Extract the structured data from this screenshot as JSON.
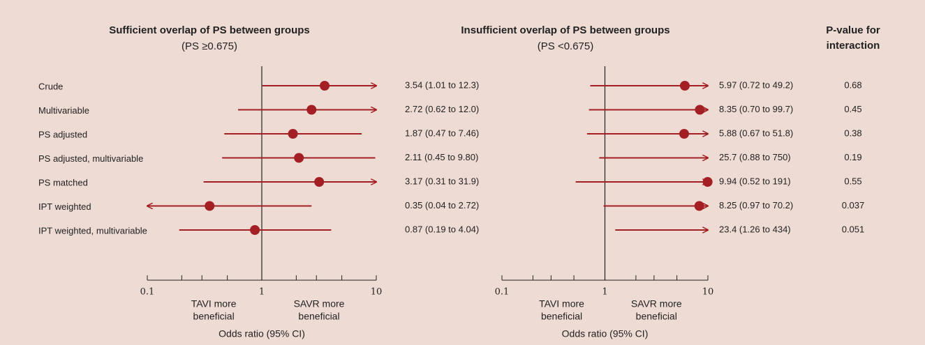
{
  "chart_data": [
    {
      "type": "forest",
      "title": "Sufficient overlap of PS between groups",
      "subtitle": "(PS ≥0.675)",
      "categories": [
        "Crude",
        "Multivariable",
        "PS adjusted",
        "PS adjusted, multivariable",
        "PS matched",
        "IPT weighted",
        "IPT weighted, multivariable"
      ],
      "values": [
        3.54,
        2.72,
        1.87,
        2.11,
        3.17,
        0.35,
        0.87
      ],
      "lower": [
        1.01,
        0.62,
        0.47,
        0.45,
        0.31,
        0.04,
        0.19
      ],
      "upper": [
        12.3,
        12.0,
        7.46,
        9.8,
        31.9,
        2.72,
        4.04
      ],
      "value_labels": [
        "3.54 (1.01 to 12.3)",
        "2.72 (0.62 to 12.0)",
        "1.87 (0.47 to 7.46)",
        "2.11 (0.45 to 9.80)",
        "3.17 (0.31 to 31.9)",
        "0.35 (0.04 to 2.72)",
        "0.87 (0.19 to 4.04)"
      ],
      "xlim": [
        0.1,
        10
      ],
      "xticks": [
        0.1,
        1,
        10
      ],
      "minor_ticks": [
        0.2,
        0.3,
        0.5,
        2,
        3,
        5
      ],
      "log_x": true,
      "xlabel": "Odds ratio (95% CI)",
      "annotations": [
        [
          "TAVI more",
          "beneficial"
        ],
        [
          "SAVR more",
          "beneficial"
        ]
      ],
      "color": "#a31f24"
    },
    {
      "type": "forest",
      "title": "Insufficient overlap of PS between groups",
      "subtitle": "(PS <0.675)",
      "values": [
        5.97,
        8.35,
        5.88,
        25.7,
        9.94,
        8.25,
        23.4
      ],
      "lower": [
        0.72,
        0.7,
        0.67,
        0.88,
        0.52,
        0.97,
        1.26
      ],
      "upper": [
        49.2,
        99.7,
        51.8,
        750,
        191,
        70.2,
        434
      ],
      "value_labels": [
        "5.97 (0.72 to 49.2)",
        "8.35 (0.70 to 99.7)",
        "5.88 (0.67 to 51.8)",
        "25.7 (0.88 to 750)",
        "9.94 (0.52 to 191)",
        "8.25 (0.97 to 70.2)",
        "23.4 (1.26 to 434)"
      ],
      "xlim": [
        0.1,
        10
      ],
      "xticks": [
        0.1,
        1,
        10
      ],
      "minor_ticks": [
        0.2,
        0.3,
        0.5,
        2,
        3,
        5
      ],
      "log_x": true,
      "xlabel": "Odds ratio (95% CI)",
      "annotations": [
        [
          "TAVI more",
          "beneficial"
        ],
        [
          "SAVR more",
          "beneficial"
        ]
      ],
      "p_value_title": [
        "P-value for",
        "interaction"
      ],
      "p_values": [
        0.68,
        0.45,
        0.38,
        0.19,
        0.55,
        0.037,
        0.051
      ],
      "color": "#a31f24"
    }
  ]
}
